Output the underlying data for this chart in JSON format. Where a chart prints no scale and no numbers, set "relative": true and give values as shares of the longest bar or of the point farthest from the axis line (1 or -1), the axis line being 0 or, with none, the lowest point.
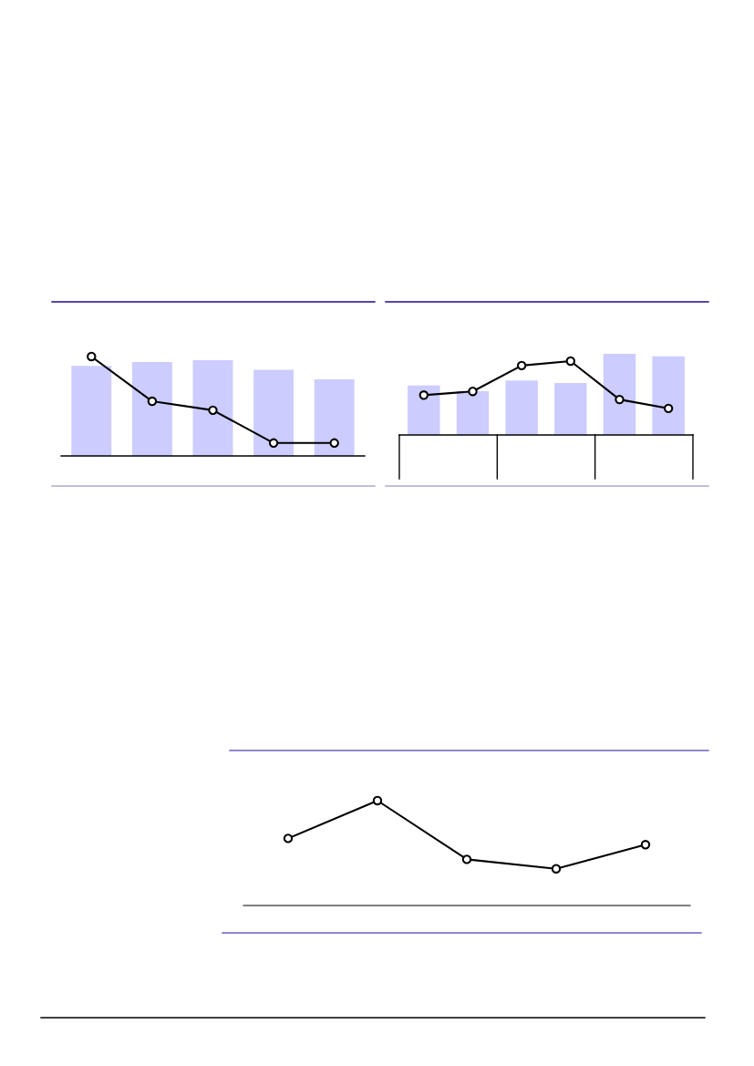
{
  "chart_data": [
    {
      "type": "bar",
      "relative": true,
      "categories": [
        null,
        null,
        null,
        null,
        null
      ],
      "grid": false,
      "series": [
        {
          "color": "#ccccff",
          "values": [
            0.94,
            0.98,
            1,
            0.9,
            0.8
          ]
        }
      ]
    },
    {
      "type": "line",
      "relative": true,
      "categories": [
        null,
        null,
        null,
        null,
        null
      ],
      "marker": "circle",
      "grid": false,
      "series": [
        {
          "color": "#000000",
          "values": [
            1,
            0.55,
            0.46,
            0.13,
            0.13
          ]
        }
      ]
    },
    {
      "type": "bar",
      "relative": true,
      "categories": [
        null,
        null,
        null,
        null,
        null,
        null
      ],
      "grid": false,
      "series": [
        {
          "color": "#ccccff",
          "values": [
            0.61,
            0.54,
            0.67,
            0.64,
            1,
            0.97
          ]
        }
      ]
    },
    {
      "type": "line",
      "relative": true,
      "categories": [
        null,
        null,
        null,
        null,
        null,
        null
      ],
      "marker": "circle",
      "grid": false,
      "series": [
        {
          "color": "#000000",
          "values": [
            0.54,
            0.59,
            0.94,
            1,
            0.48,
            0.36
          ]
        }
      ]
    },
    {
      "type": "line",
      "relative": true,
      "categories": [
        null,
        null,
        null,
        null,
        null
      ],
      "marker": "circle",
      "grid": false,
      "series": [
        {
          "color": "#000000",
          "values": [
            0.64,
            1,
            0.44,
            0.35,
            0.58
          ]
        }
      ]
    }
  ]
}
